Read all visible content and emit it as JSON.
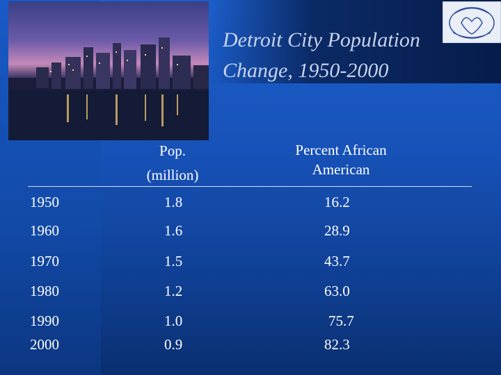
{
  "title": "Detroit City Population\nChange, 1950-2000",
  "headers": {
    "population": "Pop.\n(million)",
    "percent_african_american": "Percent African\nAmerican"
  },
  "rows": [
    {
      "year": "1950",
      "pop": "1.8",
      "pct": "16.2"
    },
    {
      "year": "1960",
      "pop": "1.6",
      "pct": "28.9"
    },
    {
      "year": "1970",
      "pop": "1.5",
      "pct": "43.7"
    },
    {
      "year": "1980",
      "pop": "1.2",
      "pct": "63.0"
    },
    {
      "year": "1990",
      "pop": "1.0",
      "pct": "75.7"
    },
    {
      "year": "2000",
      "pop": "0.9",
      "pct": "82.3"
    }
  ],
  "colors": {
    "background": "#1752b8",
    "title_text": "#c7d4ee",
    "text": "#ffffff"
  }
}
